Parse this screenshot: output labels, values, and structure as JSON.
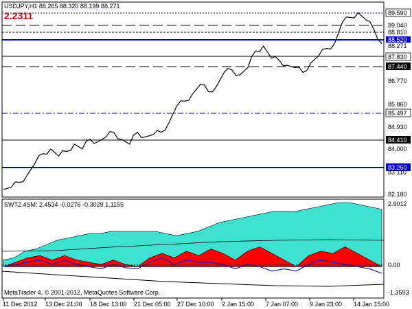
{
  "window": {
    "symbol_header": "USDJPY,H1  88.265 88.320 88.199 88.271",
    "big_value": "2.2311",
    "copyright": "MetaTrader 4, © 2001-2012, MetaQuotes Software Corp."
  },
  "colors": {
    "price_line": "#000000",
    "blue_line": "#0000cc",
    "red_text": "#cc0000",
    "cyan_fill": "#40e0d0",
    "red_fill": "#ff0000",
    "indicator_line": "#2020c0"
  },
  "price_axis": {
    "labels": [
      "89.590",
      "89.040",
      "88.810",
      "88.520",
      "88.271",
      "87.830",
      "87.440",
      "86.770",
      "85.860",
      "85.497",
      "84.930",
      "84.410",
      "84.000",
      "83.260",
      "83.110",
      "82.180"
    ],
    "highlighted": [
      {
        "text": "89.590",
        "style": "white"
      },
      {
        "text": "89.040",
        "style": "white"
      },
      {
        "text": "88.810",
        "style": "white"
      },
      {
        "text": "88.520",
        "style": "blue"
      },
      {
        "text": "88.271",
        "style": "white"
      },
      {
        "text": "87.830",
        "style": "white"
      },
      {
        "text": "87.440",
        "style": "black"
      },
      {
        "text": "85.497",
        "style": "white"
      },
      {
        "text": "84.410",
        "style": "black"
      },
      {
        "text": "83.260",
        "style": "blue"
      }
    ],
    "plain": [
      "86.770",
      "85.860",
      "84.930",
      "84.000",
      "83.110",
      "82.180"
    ]
  },
  "indicator": {
    "header": "SWT2.4SM:  2.4534 -0.0276 -0.3029 1.1155",
    "axis_labels": [
      "2.9012",
      "0.00",
      "-1.3593"
    ]
  },
  "time_axis": {
    "labels": [
      "11 Dec 2012",
      "13 Dec 21:00",
      "18 Dec 13:00",
      "21 Dec 05:00",
      "27 Dec 10:00",
      "2 Jan 15:00",
      "7 Jan 07:00",
      "9 Jan 23:00",
      "14 Jan 15:00"
    ]
  },
  "chart_data": [
    {
      "type": "line",
      "series": [
        {
          "values": [
            82.2,
            82.3,
            82.5,
            82.8,
            83.3,
            83.7,
            83.9,
            83.6,
            83.8,
            84.1,
            83.9,
            84.3,
            84.2,
            84.4,
            84.6,
            84.3,
            84.1,
            84.6,
            84.4,
            84.5,
            84.6,
            85.0,
            85.7,
            85.9,
            86.2,
            86.6,
            86.3,
            86.5,
            87.1,
            87.2,
            87.0,
            87.3,
            88.0,
            88.2,
            87.7,
            87.6,
            87.4,
            87.3,
            87.1,
            87.5,
            87.8,
            88.1,
            88.3,
            89.2,
            89.4,
            89.6,
            89.3,
            88.9,
            88.3
          ]
        }
      ],
      "ylim": [
        82.0,
        89.7
      ],
      "levels": [
        89.59,
        89.04,
        88.81,
        88.52,
        87.83,
        87.44,
        85.497,
        84.41,
        83.26
      ]
    },
    {
      "type": "area",
      "series": [
        {
          "values": [
            0.3,
            0.4,
            0.7,
            0.8,
            1.0,
            1.2,
            1.3,
            1.4,
            1.5,
            1.5,
            1.6,
            1.6,
            1.6,
            1.6,
            1.6,
            1.5,
            1.4,
            1.5,
            1.6,
            1.8,
            2.0,
            2.1,
            2.2,
            2.3,
            2.4,
            2.5,
            2.5,
            2.5,
            2.6,
            2.7,
            2.8,
            2.9,
            2.9,
            2.8,
            2.7,
            2.6
          ]
        },
        {
          "values": [
            0.0,
            0.2,
            0.4,
            0.5,
            0.3,
            0.5,
            0.3,
            0.2,
            0.1,
            0.3,
            0.1,
            0.0,
            0.4,
            0.6,
            0.4,
            0.7,
            0.5,
            0.8,
            0.6,
            0.3,
            0.7,
            0.9,
            0.6,
            0.3,
            0.0,
            0.5,
            0.7,
            0.6,
            0.9,
            0.6,
            0.3,
            0.0
          ]
        },
        {
          "values": [
            0.0,
            0.1,
            0.2,
            0.3,
            0.1,
            0.3,
            0.1,
            0.0,
            -0.1,
            0.1,
            -0.05,
            -0.1,
            0.2,
            0.4,
            0.1,
            0.3,
            0.2,
            0.2,
            0.1,
            -0.1,
            0.1,
            0.0,
            -0.2,
            -0.1,
            -0.2,
            0.1,
            0.3,
            0.2,
            0.1,
            0.0,
            -0.1,
            -0.3
          ]
        }
      ],
      "ylim": [
        -1.3593,
        2.9012
      ]
    }
  ]
}
